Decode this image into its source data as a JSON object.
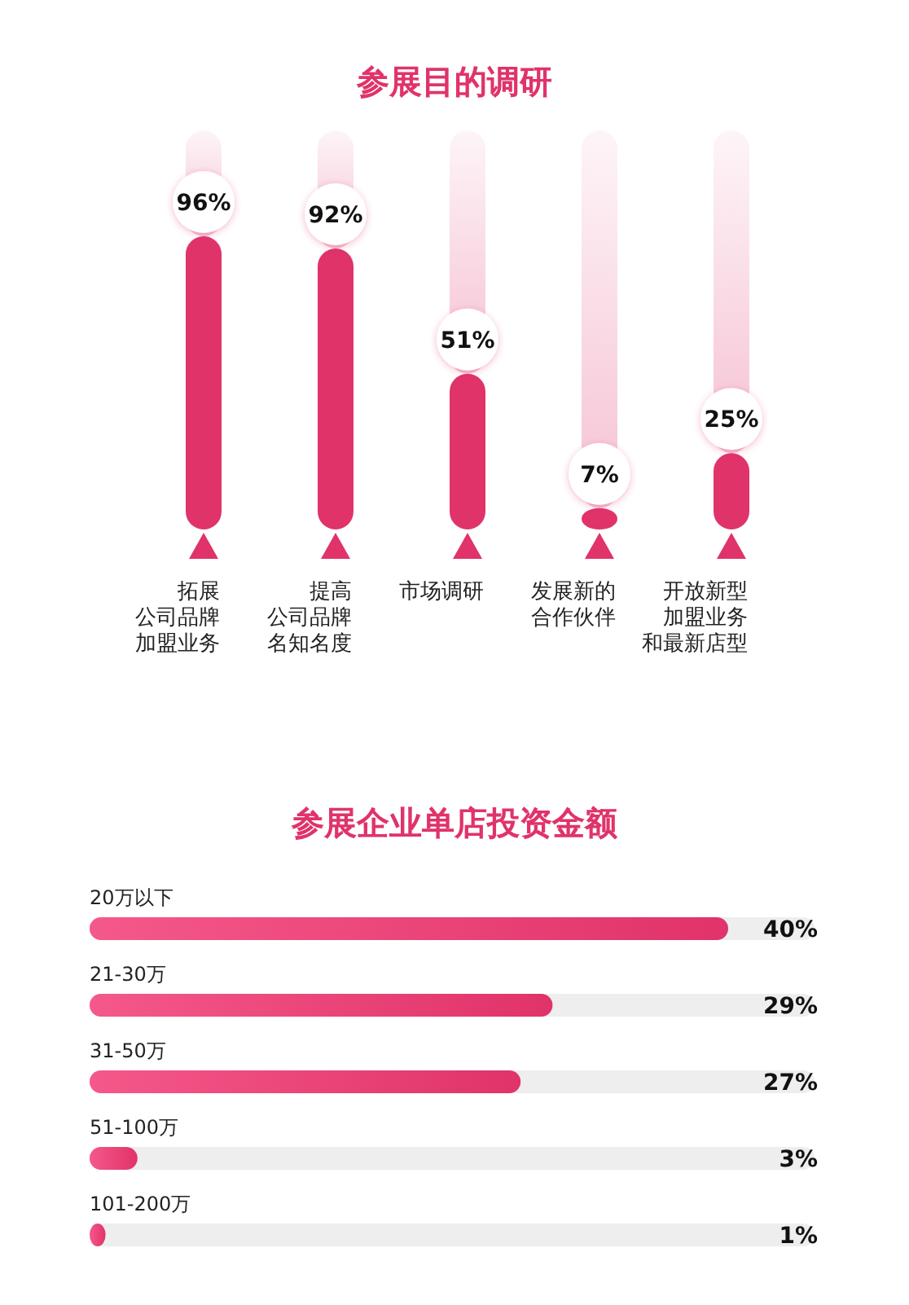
{
  "chart_data": [
    {
      "type": "bar",
      "title": "参展目的调研",
      "categories": [
        "拓展公司品牌加盟业务",
        "提高公司品牌名知名度",
        "市场调研",
        "发展新的合作伙伴",
        "开放新型加盟业务和最新店型"
      ],
      "values": [
        96,
        92,
        51,
        7,
        25
      ],
      "value_labels": [
        "96%",
        "92%",
        "51%",
        "7%",
        "25%"
      ],
      "color": "#e0336a"
    },
    {
      "type": "bar",
      "orientation": "horizontal",
      "title": "参展企业单店投资金额",
      "categories": [
        "20万以下",
        "21-30万",
        "31-50万",
        "51-100万",
        "101-200万"
      ],
      "values": [
        40,
        29,
        27,
        3,
        1
      ],
      "value_labels": [
        "40%",
        "29%",
        "27%",
        "3%",
        "1%"
      ],
      "color": "#e0336a"
    }
  ]
}
